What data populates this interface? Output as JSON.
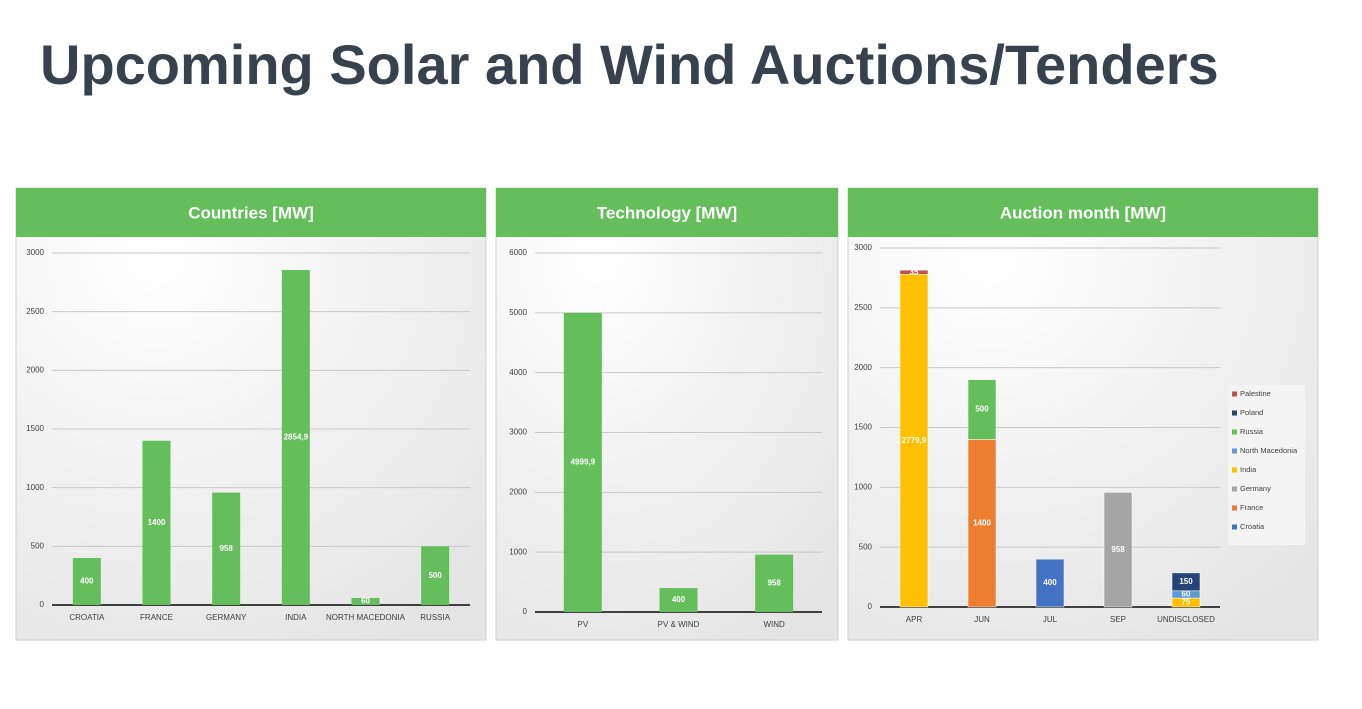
{
  "title": "Upcoming Solar and Wind Auctions/Tenders",
  "chart_data": [
    {
      "type": "bar",
      "title": "Countries [MW]",
      "categories": [
        "CROATIA",
        "FRANCE",
        "GERMANY",
        "INDIA",
        "NORTH MACEDONIA",
        "RUSSIA"
      ],
      "values": [
        400,
        1400,
        958,
        2854.9,
        60,
        500
      ],
      "value_labels": [
        "400",
        "1400",
        "958",
        "2854,9",
        "60",
        "500"
      ],
      "color": "#63be5b",
      "ylim": [
        0,
        3000
      ],
      "yticks": [
        0,
        500,
        1000,
        1500,
        2000,
        2500,
        3000
      ],
      "grid": true
    },
    {
      "type": "bar",
      "title": "Technology [MW]",
      "categories": [
        "PV",
        "PV & WIND",
        "WIND"
      ],
      "values": [
        4999.9,
        400,
        958
      ],
      "value_labels": [
        "4999,9",
        "400",
        "958"
      ],
      "color": "#63be5b",
      "ylim": [
        0,
        6000
      ],
      "yticks": [
        0,
        1000,
        2000,
        3000,
        4000,
        5000,
        6000
      ],
      "grid": true
    },
    {
      "type": "stacked_bar",
      "title": "Auction month [MW]",
      "categories": [
        "APR",
        "JUN",
        "JUL",
        "SEP",
        "UNDISCLOSED"
      ],
      "series": [
        {
          "name": "Croatia",
          "color": "#4472c4",
          "values": [
            null,
            null,
            400,
            null,
            null
          ]
        },
        {
          "name": "France",
          "color": "#ed7d31",
          "values": [
            null,
            1400,
            null,
            null,
            null
          ]
        },
        {
          "name": "Germany",
          "color": "#a5a5a5",
          "values": [
            null,
            null,
            null,
            958,
            null
          ]
        },
        {
          "name": "India",
          "color": "#ffc000",
          "values": [
            2779.9,
            null,
            null,
            null,
            75
          ],
          "value_labels": [
            "2779,9",
            null,
            null,
            null,
            "75"
          ]
        },
        {
          "name": "North Macedonia",
          "color": "#5b9bd5",
          "values": [
            null,
            null,
            null,
            null,
            60
          ]
        },
        {
          "name": "Russia",
          "color": "#63be5b",
          "values": [
            null,
            500,
            null,
            null,
            null
          ]
        },
        {
          "name": "Poland",
          "color": "#264478",
          "values": [
            null,
            null,
            null,
            null,
            150
          ]
        },
        {
          "name": "Palestine",
          "color": "#c0504d",
          "values": [
            35,
            null,
            null,
            null,
            null
          ]
        }
      ],
      "ylim": [
        0,
        3000
      ],
      "yticks": [
        0,
        500,
        1000,
        1500,
        2000,
        2500,
        3000
      ],
      "grid": true,
      "legend": "right"
    }
  ]
}
